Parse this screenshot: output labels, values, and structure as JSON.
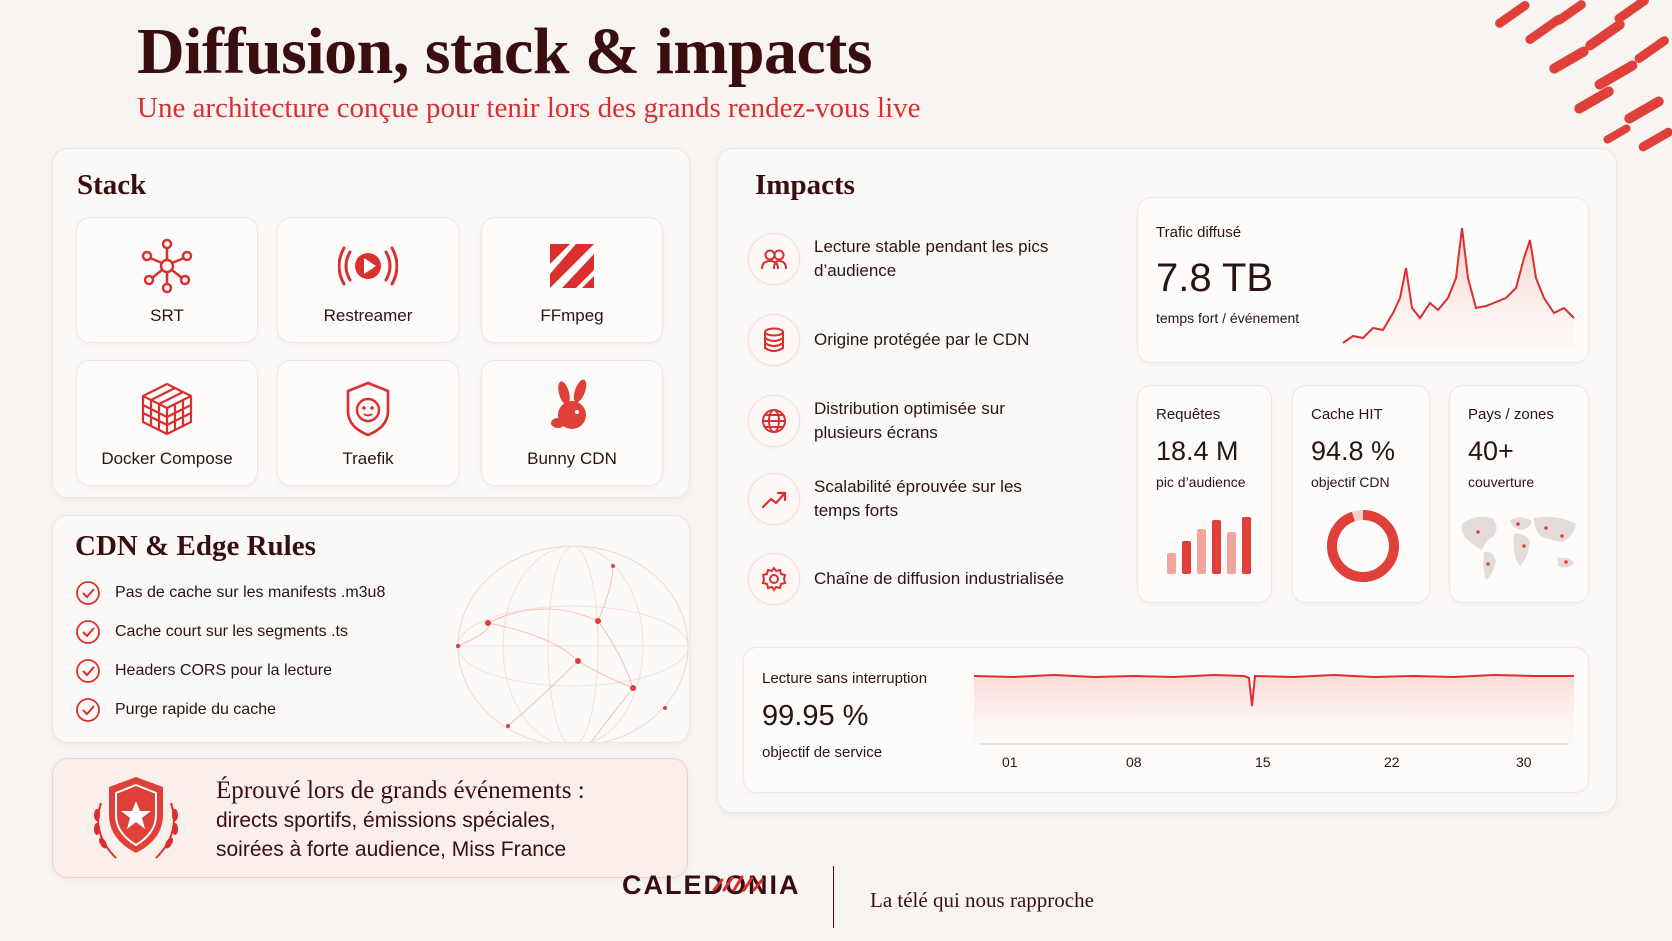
{
  "header": {
    "title": "Diffusion, stack & impacts",
    "subtitle": "Une architecture conçue pour tenir lors des grands rendez-vous live"
  },
  "stack": {
    "heading": "Stack",
    "tiles": [
      {
        "label": "SRT",
        "icon": "network-nodes-icon"
      },
      {
        "label": "Restreamer",
        "icon": "play-broadcast-icon"
      },
      {
        "label": "FFmpeg",
        "icon": "ffmpeg-logo-icon"
      },
      {
        "label": "Docker Compose",
        "icon": "cube-icon"
      },
      {
        "label": "Traefik",
        "icon": "traefik-logo-icon"
      },
      {
        "label": "Bunny CDN",
        "icon": "bunny-logo-icon"
      }
    ]
  },
  "cdn": {
    "heading": "CDN & Edge Rules",
    "rules": [
      "Pas de cache sur les manifests .m3u8",
      "Cache court sur les segments .ts",
      "Headers CORS pour la lecture",
      "Purge rapide du cache"
    ]
  },
  "proven": {
    "title": "Éprouvé lors de grands événements :",
    "line2": "directs sportifs, émissions spéciales,",
    "line3": "soirées à forte audience, Miss France"
  },
  "impacts": {
    "heading": "Impacts",
    "items": [
      {
        "text": "Lecture stable pendant les pics d’audience",
        "icon": "users-icon"
      },
      {
        "text": "Origine protégée par le CDN",
        "icon": "database-icon"
      },
      {
        "text": "Distribution optimisée sur plusieurs écrans",
        "icon": "globe-icon"
      },
      {
        "text": "Scalabilité éprouvée sur les temps forts",
        "icon": "trend-up-icon"
      },
      {
        "text": "Chaîne de diffusion industrialisée",
        "icon": "gear-icon"
      }
    ],
    "traffic": {
      "label": "Trafic diffusé",
      "value": "7.8 TB",
      "sub": "temps fort / événement"
    },
    "requests": {
      "label": "Requêtes",
      "value": "18.4 M",
      "sub": "pic d’audience",
      "bars": [
        0.35,
        0.55,
        0.75,
        0.9,
        0.7,
        0.95
      ]
    },
    "cache": {
      "label": "Cache HIT",
      "value": "94.8 %",
      "sub": "objectif CDN",
      "ratio": 0.948
    },
    "geo": {
      "label": "Pays / zones",
      "value": "40+",
      "sub": "couverture"
    },
    "uptime": {
      "label": "Lecture sans interruption",
      "value": "99.95 %",
      "sub": "objectif de service",
      "ticks": [
        "01",
        "08",
        "15",
        "22",
        "30"
      ]
    }
  },
  "footer": {
    "brand": "CALEDONIA",
    "tagline": "La télé qui nous rapproche"
  },
  "colors": {
    "accent": "#d9302f",
    "dark": "#3a0e10",
    "background": "#f7f4f2"
  }
}
